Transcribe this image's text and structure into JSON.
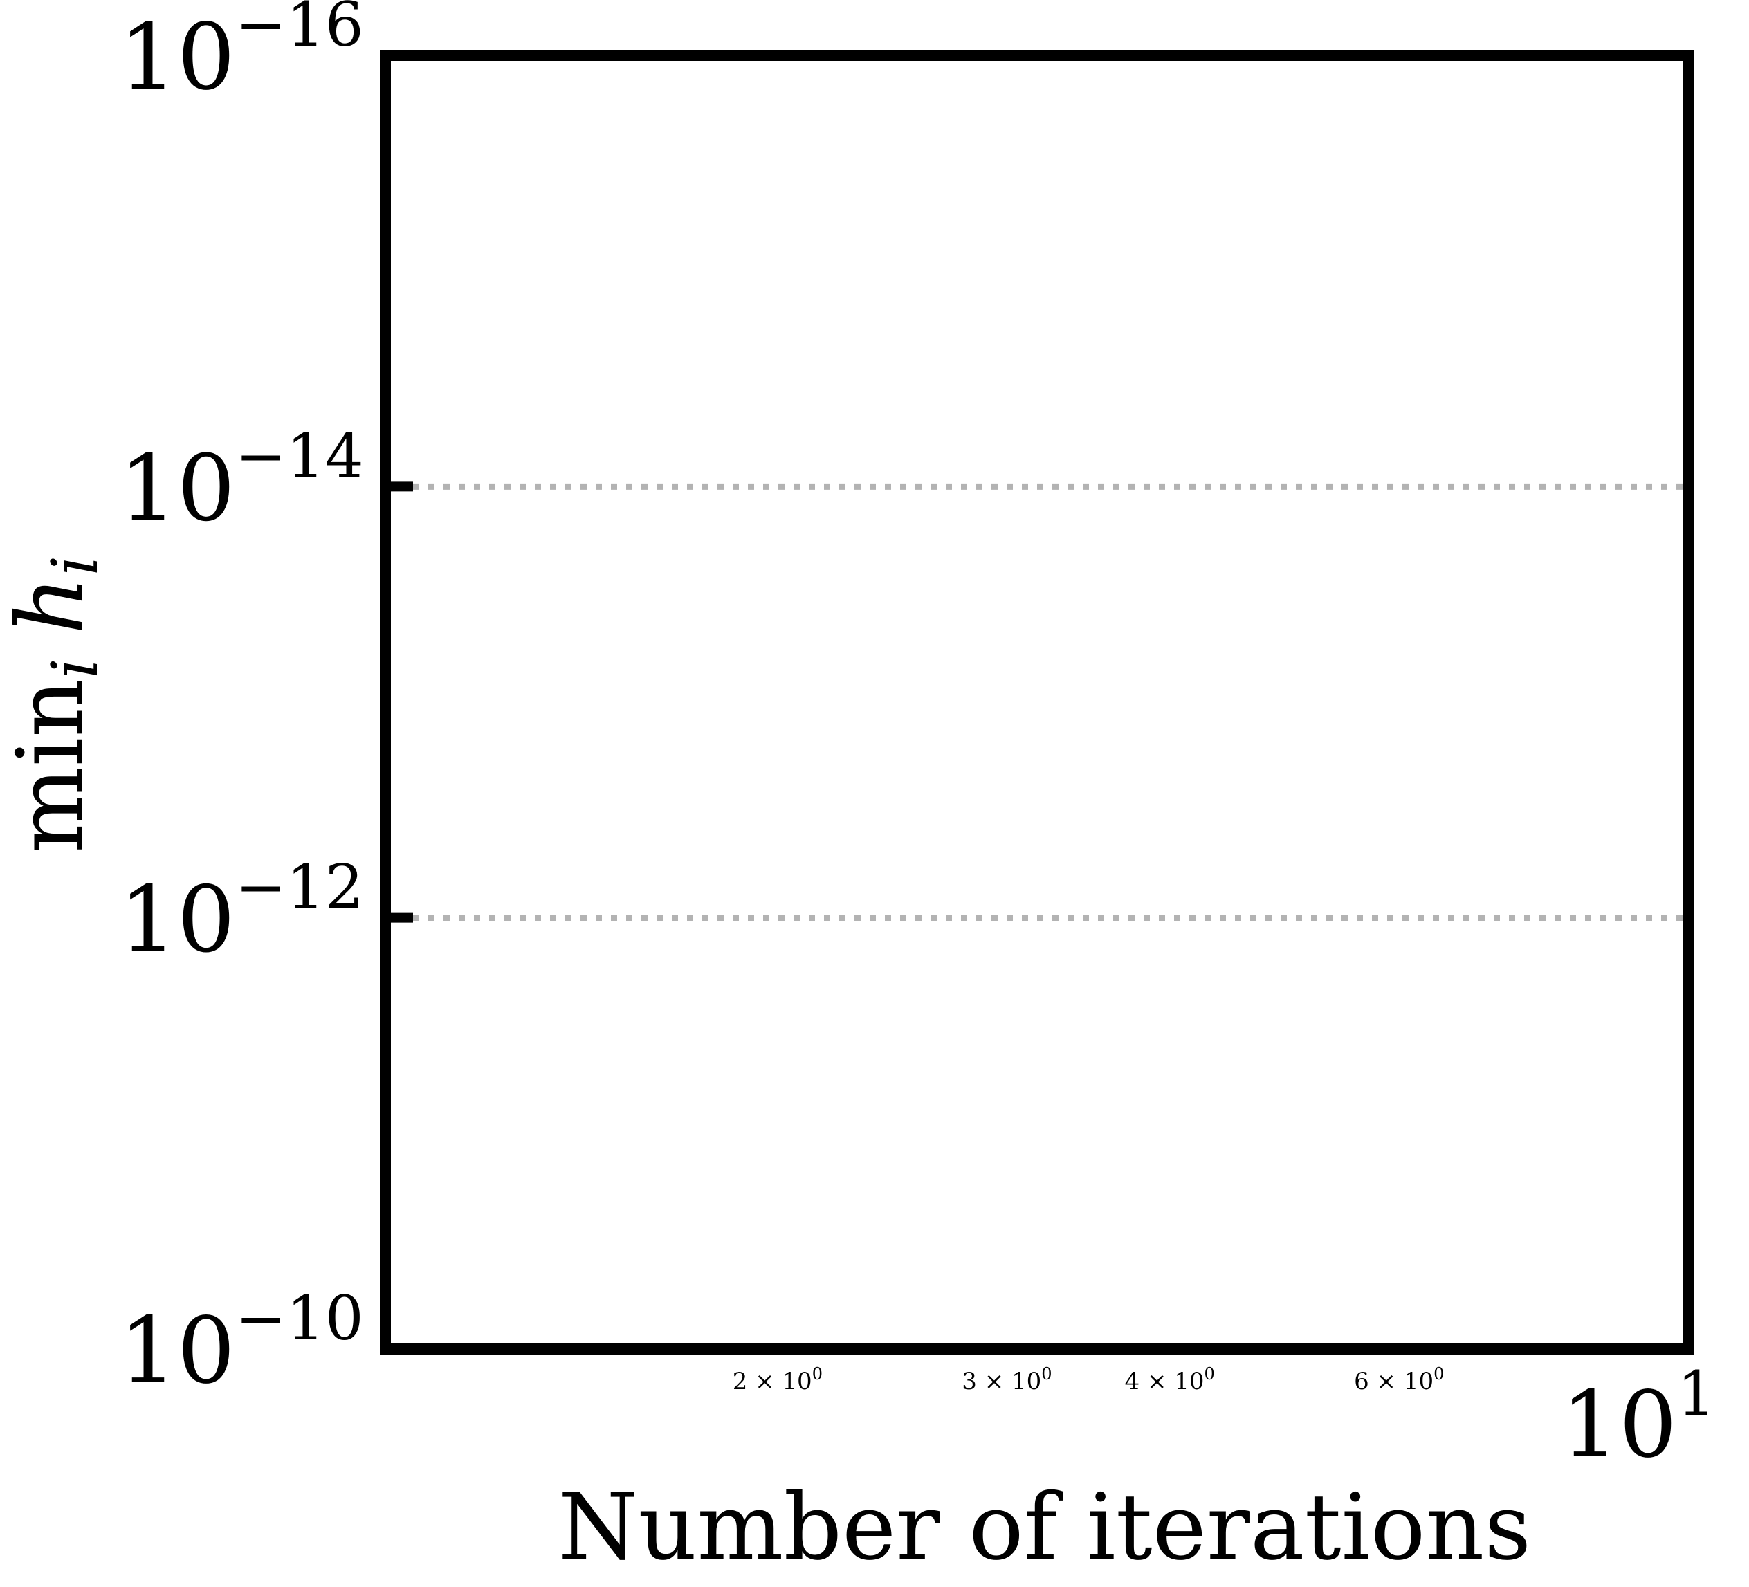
{
  "chart_data": {
    "type": "line",
    "title": "",
    "xlabel": "Number of iterations",
    "ylabel_parts": {
      "op": "min",
      "sub": "i",
      "var": "h",
      "var_sub": "i"
    },
    "x_scale": "log",
    "y_scale": "log",
    "y_inverted": true,
    "xlim": [
      1,
      10
    ],
    "ylim": [
      1e-10,
      1e-16
    ],
    "series": [],
    "grid": {
      "y": true,
      "x": false,
      "style": "dotted",
      "color": "#b3b3b3"
    },
    "x_major_ticks": [
      {
        "value": 10,
        "base": "10",
        "exp": "1"
      }
    ],
    "x_minor_ticks": [
      {
        "value": 2,
        "label": "2 × 10",
        "exp": "0"
      },
      {
        "value": 3,
        "label": "3 × 10",
        "exp": "0"
      },
      {
        "value": 4,
        "label": "4 × 10",
        "exp": "0"
      },
      {
        "value": 6,
        "label": "6 × 10",
        "exp": "0"
      }
    ],
    "y_ticks": [
      {
        "value": 1e-16,
        "base": "10",
        "exp": "−16",
        "marker": false,
        "grid": false
      },
      {
        "value": 1e-14,
        "base": "10",
        "exp": "−14",
        "marker": true,
        "grid": true
      },
      {
        "value": 1e-12,
        "base": "10",
        "exp": "−12",
        "marker": true,
        "grid": true
      },
      {
        "value": 1e-10,
        "base": "10",
        "exp": "−10",
        "marker": false,
        "grid": false
      }
    ]
  }
}
